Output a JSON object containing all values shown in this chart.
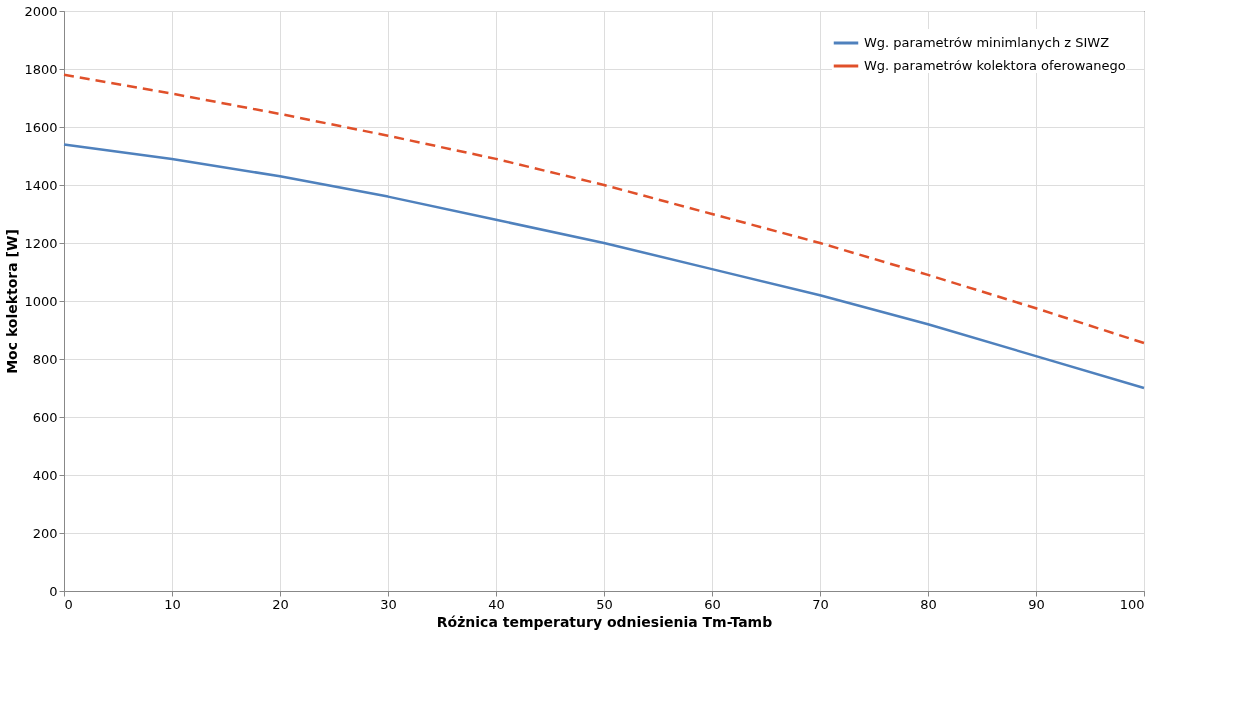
{
  "chart_data": {
    "type": "line",
    "xlabel": "Różnica temperatury odniesienia Tm-Tamb",
    "ylabel": "Moc kolektora [W]",
    "x": [
      0,
      10,
      20,
      30,
      40,
      50,
      60,
      70,
      80,
      90,
      100
    ],
    "series": [
      {
        "name": "Wg. parametrów minimlanych z SIWZ",
        "color": "#4f81bd",
        "line_style": "solid",
        "values": [
          1540,
          1490,
          1430,
          1360,
          1280,
          1200,
          1110,
          1020,
          920,
          810,
          700
        ]
      },
      {
        "name": "Wg. parametrów kolektora oferowanego",
        "color": "#e0502a",
        "line_style": "dashed",
        "values": [
          1780,
          1715,
          1645,
          1570,
          1490,
          1400,
          1300,
          1200,
          1090,
          975,
          855
        ]
      }
    ],
    "xlim": [
      0,
      100
    ],
    "xticks": [
      0,
      10,
      20,
      30,
      40,
      50,
      60,
      70,
      80,
      90,
      100
    ],
    "ylim": [
      0,
      2000
    ],
    "yticks": [
      0,
      200,
      400,
      600,
      800,
      1000,
      1200,
      1400,
      1600,
      1800,
      2000
    ],
    "grid": true,
    "legend": "top right",
    "marker": "none"
  }
}
